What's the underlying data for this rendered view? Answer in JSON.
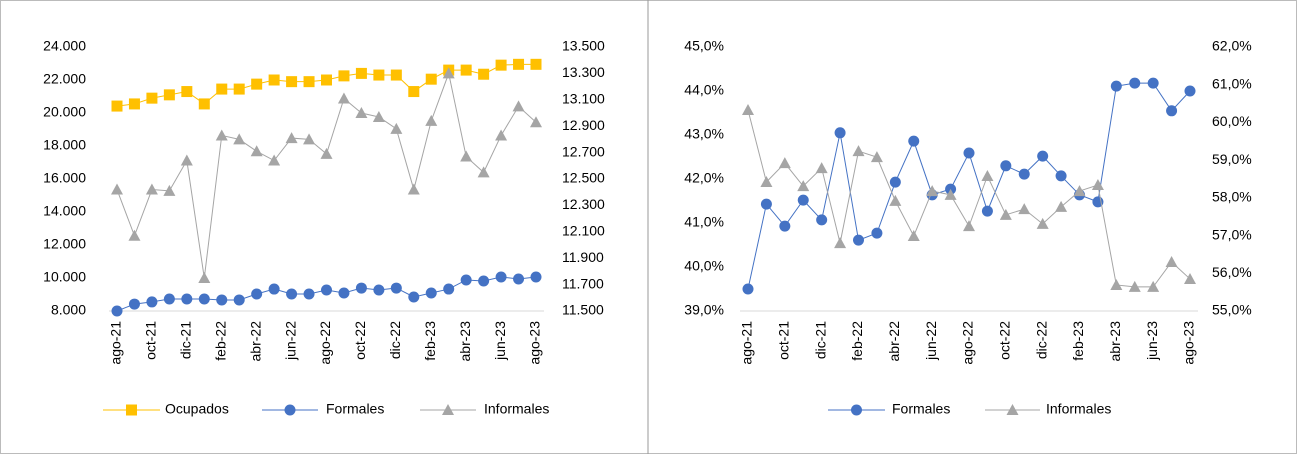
{
  "chart_data": [
    {
      "type": "line",
      "categories": [
        "ago-21",
        null,
        "oct-21",
        null,
        "dic-21",
        null,
        "feb-22",
        null,
        "abr-22",
        null,
        "jun-22",
        null,
        "ago-22",
        null,
        "oct-22",
        null,
        "dic-22",
        null,
        "feb-23",
        null,
        "abr-23",
        null,
        "jun-23",
        null,
        "ago-23"
      ],
      "ylim": [
        8000,
        24000
      ],
      "yticks": [
        {
          "value": 8000,
          "label": "8.000"
        },
        {
          "value": 10000,
          "label": "10.000"
        },
        {
          "value": 12000,
          "label": "12.000"
        },
        {
          "value": 14000,
          "label": "14.000"
        },
        {
          "value": 16000,
          "label": "16.000"
        },
        {
          "value": 18000,
          "label": "18.000"
        },
        {
          "value": 20000,
          "label": "20.000"
        },
        {
          "value": 22000,
          "label": "22.000"
        },
        {
          "value": 24000,
          "label": "24.000"
        }
      ],
      "y2lim": [
        11500,
        13500
      ],
      "y2ticks": [
        {
          "value": 11500,
          "label": "11.500"
        },
        {
          "value": 11700,
          "label": "11.700"
        },
        {
          "value": 11900,
          "label": "11.900"
        },
        {
          "value": 12100,
          "label": "12.100"
        },
        {
          "value": 12300,
          "label": "12.300"
        },
        {
          "value": 12500,
          "label": "12.500"
        },
        {
          "value": 12700,
          "label": "12.700"
        },
        {
          "value": 12900,
          "label": "12.900"
        },
        {
          "value": 13100,
          "label": "13.100"
        },
        {
          "value": 13300,
          "label": "13.300"
        },
        {
          "value": 13500,
          "label": "13.500"
        }
      ],
      "legend": "bottom",
      "series": [
        {
          "name": "Ocupados",
          "color": "#ffc000",
          "marker": "square",
          "values": [
            20420,
            20550,
            20900,
            21100,
            21300,
            20550,
            21450,
            21450,
            21750,
            22000,
            21900,
            21900,
            22000,
            22250,
            22400,
            22300,
            22300,
            21300,
            22050,
            22600,
            22600,
            22350,
            22900,
            22950,
            22950
          ]
        },
        {
          "name": "Formales",
          "color": "#4472c4",
          "marker": "circle",
          "values": [
            8000,
            8420,
            8550,
            8730,
            8730,
            8730,
            8670,
            8670,
            9030,
            9330,
            9030,
            9030,
            9270,
            9090,
            9390,
            9270,
            9390,
            8850,
            9090,
            9330,
            9880,
            9820,
            10060,
            9940,
            10060
          ]
        },
        {
          "name": "Informales",
          "color": "#a5a5a5",
          "marker": "triangle",
          "axis": "y2",
          "values": [
            12420,
            12070,
            12420,
            12410,
            12640,
            11750,
            12830,
            12800,
            12710,
            12640,
            12810,
            12800,
            12690,
            13110,
            13000,
            12970,
            12880,
            12420,
            12940,
            13300,
            12670,
            12550,
            12830,
            13050,
            12930
          ]
        }
      ]
    },
    {
      "type": "line",
      "categories": [
        "ago-21",
        null,
        "oct-21",
        null,
        "dic-21",
        null,
        "feb-22",
        null,
        "abr-22",
        null,
        "jun-22",
        null,
        "ago-22",
        null,
        "oct-22",
        null,
        "dic-22",
        null,
        "feb-23",
        null,
        "abr-23",
        null,
        "jun-23",
        null,
        "ago-23"
      ],
      "ylim": [
        39,
        45
      ],
      "yticks": [
        {
          "value": 39,
          "label": "39,0%"
        },
        {
          "value": 40,
          "label": "40,0%"
        },
        {
          "value": 41,
          "label": "41,0%"
        },
        {
          "value": 42,
          "label": "42,0%"
        },
        {
          "value": 43,
          "label": "43,0%"
        },
        {
          "value": 44,
          "label": "44,0%"
        },
        {
          "value": 45,
          "label": "45,0%"
        }
      ],
      "y2lim": [
        55,
        62
      ],
      "y2ticks": [
        {
          "value": 55,
          "label": "55,0%"
        },
        {
          "value": 56,
          "label": "56,0%"
        },
        {
          "value": 57,
          "label": "57,0%"
        },
        {
          "value": 58,
          "label": "58,0%"
        },
        {
          "value": 59,
          "label": "59,0%"
        },
        {
          "value": 60,
          "label": "60,0%"
        },
        {
          "value": 61,
          "label": "61,0%"
        },
        {
          "value": 62,
          "label": "62,0%"
        }
      ],
      "legend": "bottom",
      "series": [
        {
          "name": "Formales",
          "color": "#4472c4",
          "marker": "circle",
          "values": [
            39.5,
            41.43,
            40.93,
            41.52,
            41.07,
            43.05,
            40.61,
            40.77,
            41.93,
            42.86,
            41.64,
            41.77,
            42.59,
            41.27,
            42.3,
            42.11,
            42.52,
            42.07,
            41.64,
            41.48,
            44.11,
            44.18,
            44.18,
            43.55,
            44.0
          ]
        },
        {
          "name": "Informales",
          "color": "#a5a5a5",
          "marker": "triangle",
          "axis": "y2",
          "values": [
            60.33,
            58.42,
            58.92,
            58.31,
            58.79,
            56.8,
            59.24,
            59.08,
            57.92,
            56.99,
            58.18,
            58.08,
            57.25,
            58.58,
            57.55,
            57.7,
            57.31,
            57.76,
            58.18,
            58.34,
            55.69,
            55.64,
            55.64,
            56.3,
            55.85
          ]
        }
      ]
    }
  ]
}
